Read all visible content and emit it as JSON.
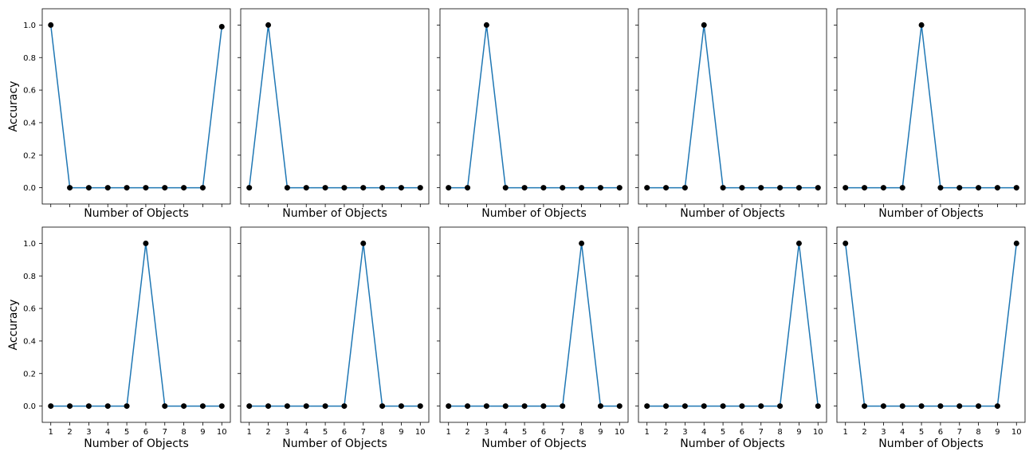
{
  "chart_data": {
    "type": "line",
    "layout": "2x5 grid of subplots, shared axes",
    "xlabel": "Number of Objects",
    "ylabel": "Accuracy",
    "x": [
      1,
      2,
      3,
      4,
      5,
      6,
      7,
      8,
      9,
      10
    ],
    "xticks": [
      "1",
      "2",
      "3",
      "4",
      "5",
      "6",
      "7",
      "8",
      "9",
      "10"
    ],
    "yticks": [
      "0.0",
      "0.2",
      "0.4",
      "0.6",
      "0.8",
      "1.0"
    ],
    "ylim": [
      -0.1,
      1.1
    ],
    "xlim": [
      0.55,
      10.45
    ],
    "grid": false,
    "line_color": "#1f77b4",
    "marker_color": "#000000",
    "panels": [
      {
        "values": [
          1,
          0,
          0,
          0,
          0,
          0,
          0,
          0,
          0,
          0.99
        ]
      },
      {
        "values": [
          0,
          1,
          0,
          0,
          0,
          0,
          0,
          0,
          0,
          0
        ]
      },
      {
        "values": [
          0,
          0,
          1,
          0,
          0,
          0,
          0,
          0,
          0,
          0
        ]
      },
      {
        "values": [
          0,
          0,
          0,
          1,
          0,
          0,
          0,
          0,
          0,
          0
        ]
      },
      {
        "values": [
          0,
          0,
          0,
          0,
          1,
          0,
          0,
          0,
          0,
          0
        ]
      },
      {
        "values": [
          0,
          0,
          0,
          0,
          0,
          1,
          0,
          0,
          0,
          0
        ]
      },
      {
        "values": [
          0,
          0,
          0,
          0,
          0,
          0,
          1,
          0,
          0,
          0
        ]
      },
      {
        "values": [
          0,
          0,
          0,
          0,
          0,
          0,
          0,
          1,
          0,
          0
        ]
      },
      {
        "values": [
          0,
          0,
          0,
          0,
          0,
          0,
          0,
          0,
          1,
          0
        ]
      },
      {
        "values": [
          1,
          0,
          0,
          0,
          0,
          0,
          0,
          0,
          0,
          1
        ]
      }
    ]
  }
}
